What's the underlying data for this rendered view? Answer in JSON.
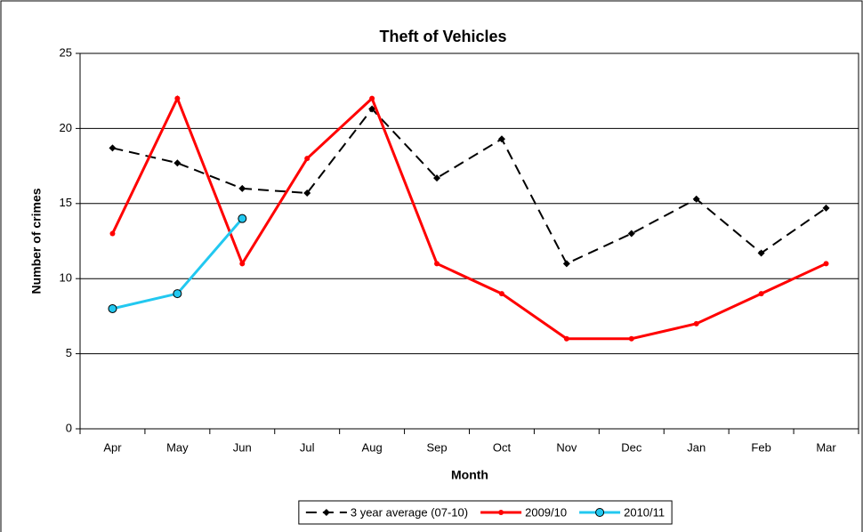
{
  "chart_data": {
    "type": "line",
    "title": "Theft of Vehicles",
    "x_label": "Month",
    "y_label": "Number of crimes",
    "categories": [
      "Apr",
      "May",
      "Jun",
      "Jul",
      "Aug",
      "Sep",
      "Oct",
      "Nov",
      "Dec",
      "Jan",
      "Feb",
      "Mar"
    ],
    "series": [
      {
        "name": "3 year average (07-10)",
        "color": "#000000",
        "line_style": "dashed",
        "marker": "diamond",
        "values": [
          18.7,
          17.7,
          16,
          15.7,
          21.3,
          16.7,
          19.3,
          11,
          13,
          15.3,
          11.7,
          14.7
        ]
      },
      {
        "name": "2009/10",
        "color": "#ff0000",
        "line_style": "solid",
        "marker": "dot",
        "values": [
          13,
          22,
          11,
          18,
          22,
          11,
          9,
          6,
          6,
          7,
          9,
          11
        ]
      },
      {
        "name": "2010/11",
        "color": "#22c8f0",
        "line_style": "solid",
        "marker": "circle",
        "values": [
          8,
          9,
          14,
          null,
          null,
          null,
          null,
          null,
          null,
          null,
          null,
          null
        ]
      }
    ],
    "ylim": [
      0,
      25
    ],
    "yticks": [
      0,
      5,
      10,
      15,
      20,
      25
    ],
    "grid": true,
    "legend": "bottom"
  }
}
